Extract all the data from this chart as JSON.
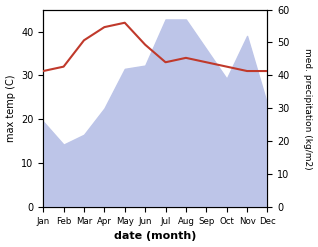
{
  "months": [
    "Jan",
    "Feb",
    "Mar",
    "Apr",
    "May",
    "Jun",
    "Jul",
    "Aug",
    "Sep",
    "Oct",
    "Nov",
    "Dec"
  ],
  "temperature": [
    31,
    32,
    38,
    41,
    42,
    37,
    33,
    34,
    33,
    32,
    31,
    31
  ],
  "precipitation": [
    26,
    19,
    22,
    30,
    42,
    43,
    57,
    57,
    48,
    39,
    52,
    31
  ],
  "temp_color": "#c0392b",
  "precip_fill_color": "#bdc5e8",
  "ylim_temp": [
    0,
    45
  ],
  "ylim_precip": [
    0,
    60
  ],
  "xlabel": "date (month)",
  "ylabel_left": "max temp (C)",
  "ylabel_right": "med. precipitation (kg/m2)",
  "figsize": [
    3.18,
    2.47
  ],
  "dpi": 100
}
